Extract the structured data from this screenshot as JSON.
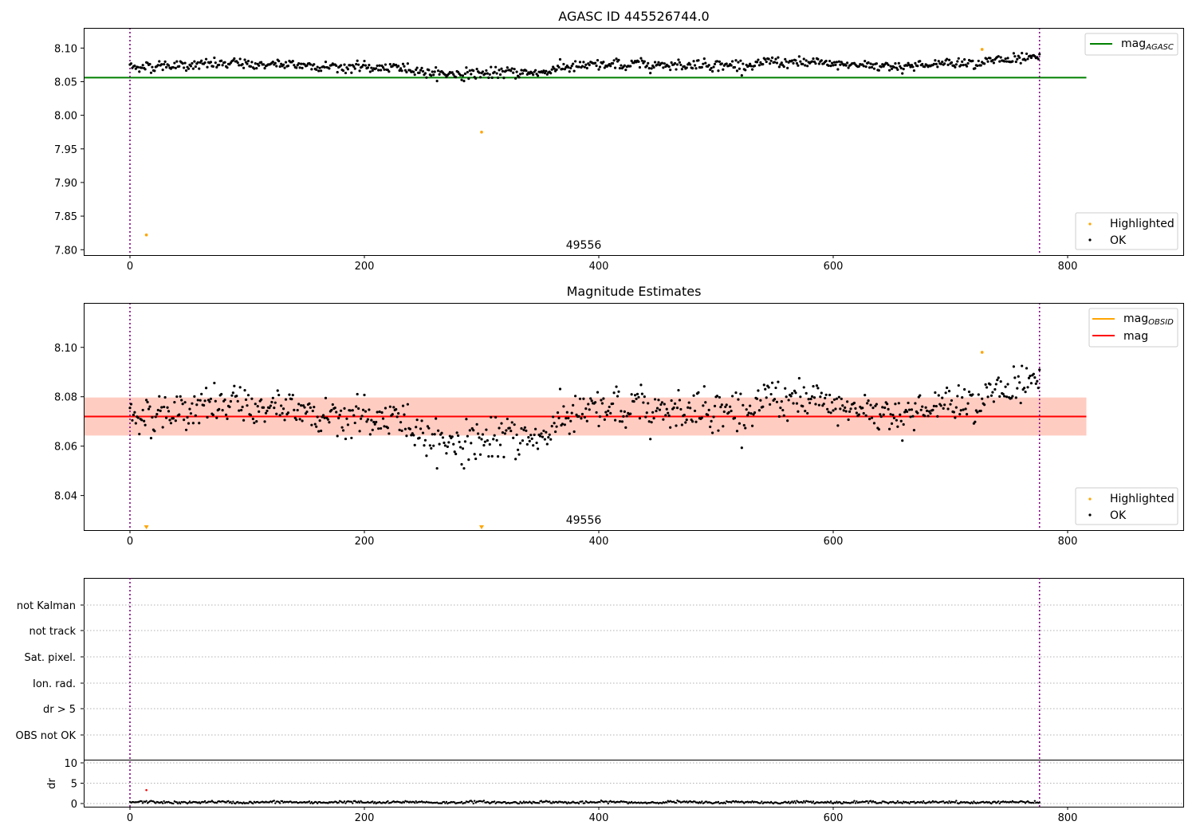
{
  "colors": {
    "ok": "#000000",
    "highlighted": "#ffa500",
    "agasc_line": "#008000",
    "mag_line": "#ff0000",
    "obsid_line": "#ffa500",
    "band_outer": "#ffc0cb",
    "band_inner": "#ffa07a",
    "vline": "#800080",
    "grid": "#b0b0b0"
  },
  "panel1": {
    "title": "AGASC ID 445526744.0",
    "legend_line": "mag",
    "legend_line_sub": "AGASC",
    "legend_points": [
      "Highlighted",
      "OK"
    ],
    "obsid_label": "49556"
  },
  "panel2": {
    "title": "Magnitude Estimates",
    "legend_lines": [
      "mag",
      "mag"
    ],
    "legend_line_sub": "OBSID",
    "legend_points": [
      "Highlighted",
      "OK"
    ],
    "obsid_label": "49556"
  },
  "panel3": {
    "flag_labels": [
      "not Kalman",
      "not track",
      "Sat. pixel.",
      "Ion. rad.",
      "dr > 5",
      "OBS not OK"
    ],
    "dr_ylabel": "dr"
  },
  "chart_data": [
    {
      "type": "scatter",
      "title": "AGASC ID 445526744.0",
      "xlim": [
        -40,
        900
      ],
      "ylim": [
        7.792,
        8.13
      ],
      "xticks": [
        0,
        200,
        400,
        600,
        800
      ],
      "yticks": [
        7.8,
        7.85,
        7.9,
        7.95,
        8.0,
        8.05,
        8.1
      ],
      "vlines": [
        0,
        776
      ],
      "hline": {
        "name": "mag_AGASC",
        "y": 8.056,
        "x": [
          -40,
          816
        ]
      },
      "ok_series": {
        "name": "OK",
        "x_range": [
          0,
          776
        ],
        "n_points": 777,
        "mean": 8.072,
        "spread": 0.007
      },
      "highlighted": {
        "name": "Highlighted",
        "x": [
          14,
          300,
          727
        ],
        "y": [
          7.822,
          7.975,
          8.098
        ]
      },
      "annotation": {
        "text": "49556",
        "x": 388
      }
    },
    {
      "type": "scatter",
      "title": "Magnitude Estimates",
      "xlim": [
        -40,
        900
      ],
      "ylim": [
        8.026,
        8.118
      ],
      "xticks": [
        0,
        200,
        400,
        600,
        800
      ],
      "yticks": [
        8.04,
        8.06,
        8.08,
        8.1
      ],
      "vlines": [
        0,
        776
      ],
      "mag_line": {
        "name": "mag",
        "y": 8.072,
        "x": [
          -40,
          816
        ]
      },
      "band_outer": [
        8.0643,
        8.0797
      ],
      "band_inner": [
        8.0643,
        8.0797
      ],
      "ok_series": {
        "name": "OK",
        "x_range": [
          0,
          776
        ],
        "n_points": 777,
        "mean": 8.072,
        "spread": 0.007
      },
      "highlighted": {
        "name": "Highlighted",
        "x": [
          727
        ],
        "y": [
          8.098
        ]
      },
      "out_of_range_markers": {
        "x": [
          14,
          300
        ]
      },
      "annotation": {
        "text": "49556",
        "x": 388
      }
    },
    {
      "type": "scatter",
      "flags": [
        "not Kalman",
        "not track",
        "Sat. pixel.",
        "Ion. rad.",
        "dr > 5",
        "OBS not OK"
      ],
      "dr_ylim": [
        -0.5,
        10.5
      ],
      "dr_yticks": [
        0,
        5,
        10
      ],
      "dr_ylabel": "dr",
      "xlim": [
        -40,
        900
      ],
      "xticks": [
        0,
        200,
        400,
        800
      ],
      "xticks_all": [
        0,
        200,
        400,
        600,
        800
      ],
      "vlines": [
        0,
        776
      ],
      "dr_series": {
        "x_range": [
          0,
          776
        ],
        "n_points": 777,
        "mean": 0.3
      },
      "dr_highlight": {
        "x": [
          14
        ],
        "y": [
          3.3
        ]
      }
    }
  ]
}
